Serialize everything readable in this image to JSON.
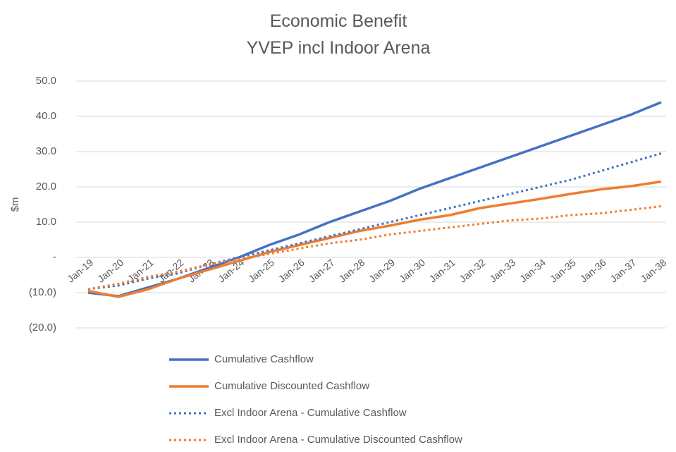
{
  "chart_data": {
    "type": "line",
    "title": "Economic Benefit",
    "subtitle": "YVEP incl Indoor Arena",
    "y_label": "$m",
    "categories": [
      "Jan-19",
      "Jan-20",
      "Jan-21",
      "Jan-22",
      "Jan-23",
      "Jan-24",
      "Jan-25",
      "Jan-26",
      "Jan-27",
      "Jan-28",
      "Jan-29",
      "Jan-30",
      "Jan-31",
      "Jan-32",
      "Jan-33",
      "Jan-34",
      "Jan-35",
      "Jan-36",
      "Jan-37",
      "Jan-38"
    ],
    "series": [
      {
        "name": "Cumulative Cashflow",
        "color": "#4472c4",
        "line_style": "solid",
        "values": [
          -10,
          -11,
          -8.5,
          -6,
          -3,
          0,
          3.5,
          6.5,
          10,
          13,
          16,
          19.5,
          22.5,
          25.5,
          28.5,
          31.5,
          34.5,
          37.5,
          40.5,
          44
        ]
      },
      {
        "name": "Cumulative Discounted Cashflow",
        "color": "#ed7d31",
        "line_style": "solid",
        "values": [
          -9.5,
          -11.2,
          -9,
          -6,
          -3.5,
          -1,
          1.5,
          3.5,
          5.5,
          7.5,
          9,
          10.7,
          12,
          14,
          15.3,
          16.6,
          18,
          19.3,
          20.2,
          21.5
        ]
      },
      {
        "name": "Excl Indoor Arena - Cumulative Cashflow",
        "color": "#4472c4",
        "line_style": "dotted",
        "values": [
          -9,
          -8,
          -6,
          -4.5,
          -2,
          0,
          2,
          4,
          6,
          8,
          10,
          12,
          14,
          16,
          18,
          20,
          22,
          24.5,
          27,
          29.5
        ]
      },
      {
        "name": "Excl Indoor Arena - Cumulative Discounted Cashflow",
        "color": "#ed7d31",
        "line_style": "dotted",
        "values": [
          -9,
          -7.5,
          -5.5,
          -4,
          -2,
          -0.5,
          1,
          2.5,
          4,
          5,
          6.5,
          7.5,
          8.5,
          9.5,
          10.5,
          11,
          12,
          12.5,
          13.5,
          14.5
        ]
      }
    ],
    "ylim": [
      -20,
      50
    ],
    "yticks": [
      {
        "value": -20,
        "label": "(20.0)"
      },
      {
        "value": -10,
        "label": "(10.0)"
      },
      {
        "value": 0,
        "label": "-"
      },
      {
        "value": 10,
        "label": "10.0"
      },
      {
        "value": 20,
        "label": "20.0"
      },
      {
        "value": 30,
        "label": "30.0"
      },
      {
        "value": 40,
        "label": "40.0"
      },
      {
        "value": 50,
        "label": "50.0"
      }
    ],
    "grid": true
  }
}
